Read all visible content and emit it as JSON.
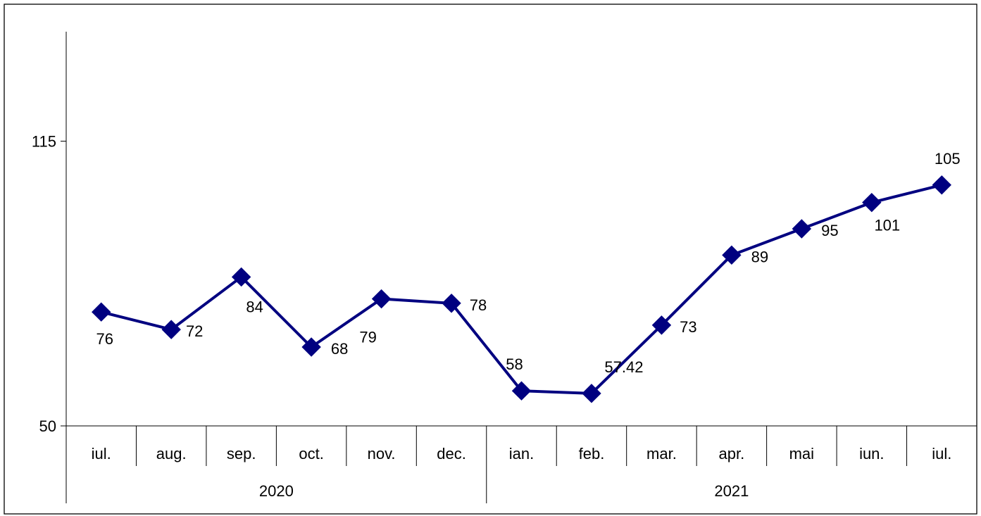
{
  "chart_data": {
    "type": "line",
    "title": "",
    "xlabel": "",
    "ylabel": "",
    "categories": [
      "iul.",
      "aug.",
      "sep.",
      "oct.",
      "nov.",
      "dec.",
      "ian.",
      "feb.",
      "mar.",
      "apr.",
      "mai",
      "iun.",
      "iul."
    ],
    "groups": [
      {
        "label": "2020",
        "count": 6
      },
      {
        "label": "2021",
        "count": 7
      }
    ],
    "series": [
      {
        "values": [
          76,
          72,
          84,
          68,
          79,
          78,
          58,
          57.42,
          73,
          89,
          95,
          101,
          105
        ],
        "labels": [
          "76",
          "72",
          "84",
          "68",
          "79",
          "78",
          "58",
          "57.42",
          "73",
          "89",
          "95",
          "101",
          "105"
        ],
        "color": "#000080",
        "marker": "diamond"
      }
    ],
    "yticks": [
      {
        "value": 50,
        "label": "50"
      },
      {
        "value": 115,
        "label": "115"
      }
    ],
    "ylim": [
      50,
      140
    ],
    "grid": false,
    "legend": "none"
  }
}
